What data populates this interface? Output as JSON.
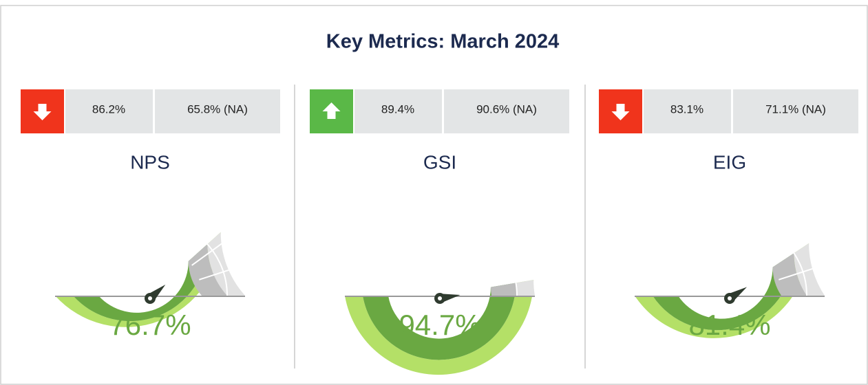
{
  "title": "Key Metrics: March 2024",
  "chart_data": [
    {
      "type": "gauge",
      "title": "NPS",
      "values": [
        76.7
      ],
      "value_labels": [
        "76.7%"
      ],
      "ylim": [
        0,
        100
      ],
      "trend": "down",
      "current": "86.2%",
      "comparison": "65.8% (NA)",
      "color": "#6aa842"
    },
    {
      "type": "gauge",
      "title": "GSI",
      "values": [
        94.7
      ],
      "value_labels": [
        "94.7%"
      ],
      "ylim": [
        0,
        100
      ],
      "trend": "up",
      "current": "89.4%",
      "comparison": "90.6% (NA)",
      "color": "#6aa842"
    },
    {
      "type": "gauge",
      "title": "EIG",
      "values": [
        81.4
      ],
      "value_labels": [
        "81.4%"
      ],
      "ylim": [
        0,
        100
      ],
      "trend": "down",
      "current": "83.1%",
      "comparison": "71.1% (NA)",
      "color": "#6aa842"
    }
  ]
}
